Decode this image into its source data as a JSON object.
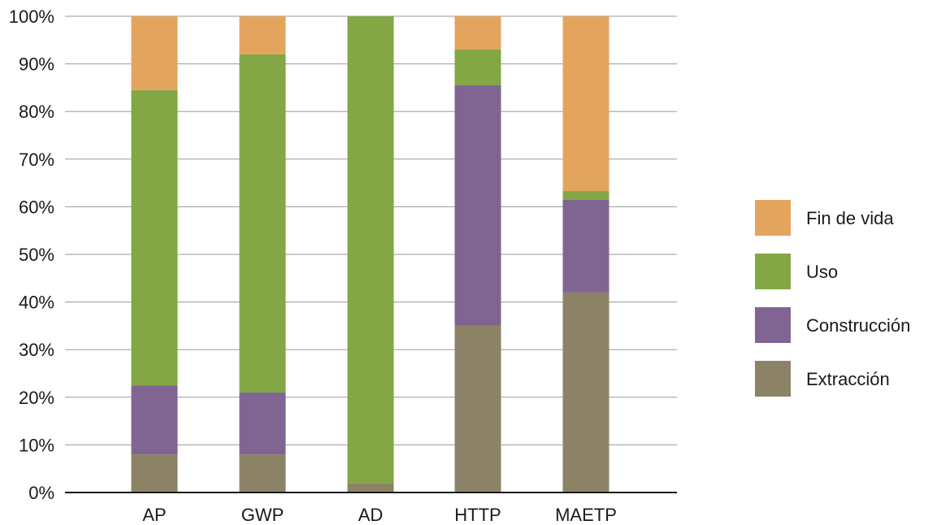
{
  "chart_data": {
    "type": "bar",
    "stacked": true,
    "categories": [
      "AP",
      "GWP",
      "AD",
      "HTTP",
      "MAETP"
    ],
    "y_ticks": [
      "0%",
      "10%",
      "20%",
      "30%",
      "40%",
      "50%",
      "60%",
      "70%",
      "80%",
      "90%",
      "100%"
    ],
    "ylim": [
      0,
      100
    ],
    "grid": true,
    "legend_position": "right",
    "series": [
      {
        "name": "Extracción",
        "color": "#8C8265",
        "values": [
          8,
          8,
          2,
          35,
          42
        ]
      },
      {
        "name": "Construcción",
        "color": "#806593",
        "values": [
          14.5,
          13,
          0,
          50.5,
          19.5
        ]
      },
      {
        "name": "Uso",
        "color": "#83A744",
        "values": [
          62,
          71,
          98,
          7.5,
          1.8
        ]
      },
      {
        "name": "Fin de vida",
        "color": "#E3A55E",
        "values": [
          15.5,
          8,
          0,
          7,
          36.7
        ]
      }
    ],
    "legend_order": [
      "Fin de vida",
      "Uso",
      "Construcción",
      "Extracción"
    ]
  }
}
